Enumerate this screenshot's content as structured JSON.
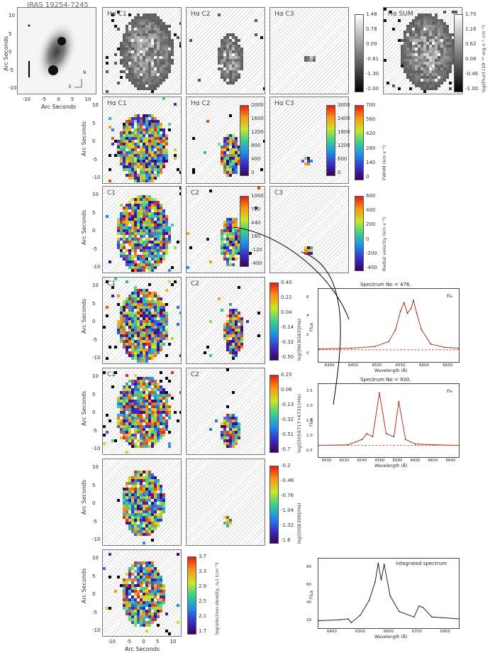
{
  "top_title": "IRAS 19254-7245",
  "axis_label": "Arc Seconds",
  "compass": {
    "n": "N",
    "e": "E"
  },
  "axis_ticks_y": [
    "10",
    "5",
    "0",
    "-5",
    "-10"
  ],
  "axis_ticks_x": [
    "-10",
    "-5",
    "0",
    "5",
    "10"
  ],
  "rows": [
    {
      "labels": [
        "Hα C1",
        "Hα C2",
        "Hα C3",
        "Hα SUM"
      ]
    },
    {
      "labels": [
        "Hα C1",
        "Hα C2",
        "Hα C3"
      ]
    },
    {
      "labels": [
        "C1",
        "C2",
        "C3"
      ]
    },
    {
      "labels": [
        "C1",
        "C2"
      ]
    },
    {
      "labels": [
        "C1",
        "C2"
      ]
    },
    {
      "labels": [
        "",
        ""
      ]
    },
    {
      "labels": [
        ""
      ]
    }
  ],
  "colorbars": {
    "flux_c": {
      "ticks": [
        "1.48",
        "0.78",
        "0.09",
        "-0.61",
        "-1.30",
        "-2.00"
      ]
    },
    "flux_sum": {
      "ticks": [
        "1.70",
        "1.16",
        "0.62",
        "0.08",
        "-0.46",
        "-1.00"
      ],
      "title": "log(Flux) (10⁻¹⁶ erg s⁻¹ cm⁻²)"
    },
    "fwhm_c2": {
      "ticks": [
        "2000",
        "1600",
        "1200",
        "800",
        "400",
        "0"
      ]
    },
    "fwhm_c3": {
      "ticks": [
        "3000",
        "2400",
        "1800",
        "1200",
        "600",
        "0"
      ]
    },
    "fwhm_c1": {
      "ticks": [
        "700",
        "560",
        "420",
        "280",
        "140",
        "0"
      ],
      "title": "FWHM (km s⁻¹)"
    },
    "vel_c2": {
      "ticks": [
        "1000",
        "720",
        "440",
        "160",
        "-120",
        "-400"
      ]
    },
    "vel_c1": {
      "ticks": [
        "600",
        "400",
        "200",
        "0",
        "-200",
        "-400"
      ],
      "title": "Radial velocity (km s⁻¹)"
    },
    "nii": {
      "ticks": [
        "0.40",
        "0.22",
        "0.04",
        "-0.14",
        "-0.32",
        "-0.50"
      ],
      "title": "log([NII]6583]/Hα)"
    },
    "sii": {
      "ticks": [
        "0.25",
        "0.06",
        "-0.13",
        "-0.32",
        "-0.51",
        "-0.7"
      ],
      "title": "log([SII](6717+6731)/Hα)"
    },
    "oi": {
      "ticks": [
        "-0.2",
        "-0.48",
        "-0.76",
        "-1.04",
        "-1.32",
        "-1.6"
      ],
      "title": "log([OI]6300]/Hα)"
    },
    "ne": {
      "ticks": [
        "3.7",
        "3.3",
        "2.9",
        "2.5",
        "2.1",
        "1.7"
      ],
      "title": "log(electron density, nₑ) (cm⁻³)"
    }
  },
  "spectra": [
    {
      "title": "Spectrum No = 476.",
      "label": "nₑ",
      "xticks": [
        "6400",
        "6450",
        "6500",
        "6550",
        "6600",
        "6650"
      ],
      "yticks": [
        "0",
        "2",
        "4",
        "6"
      ],
      "xlabel": "Wavelength (Å)",
      "ylabel": "Flux"
    },
    {
      "title": "Spectrum No = 930.",
      "label": "nₑ",
      "xticks": [
        "6500",
        "6520",
        "6540",
        "6560",
        "6580",
        "6600",
        "6620",
        "6640"
      ],
      "yticks": [
        "0.5",
        "1.0",
        "1.5",
        "2.0",
        "2.5"
      ],
      "xlabel": "Wavelength (Å)",
      "ylabel": "Flux"
    },
    {
      "title": "integrated spectrum",
      "label": "",
      "xticks": [
        "6400",
        "6500",
        "6600",
        "6700",
        "6800"
      ],
      "yticks": [
        "20",
        "40",
        "60",
        "80"
      ],
      "xlabel": "Wavelength (Å)",
      "ylabel": "Flux"
    }
  ],
  "chart_data": [
    {
      "type": "line",
      "title": "Spectrum No = 476.",
      "xlabel": "Wavelength (Å)",
      "ylabel": "Flux",
      "xlim": [
        6380,
        6680
      ],
      "ylim": [
        -1,
        8
      ],
      "x": [
        6380,
        6450,
        6500,
        6530,
        6545,
        6555,
        6563,
        6570,
        6578,
        6583,
        6590,
        6600,
        6620,
        6650,
        6680
      ],
      "series": [
        {
          "values": [
            0.6,
            0.7,
            0.9,
            1.5,
            3.0,
            5.2,
            6.3,
            5.0,
            5.6,
            6.6,
            5.0,
            3.0,
            1.2,
            0.8,
            0.7
          ]
        }
      ]
    },
    {
      "type": "line",
      "title": "Spectrum No = 930.",
      "xlabel": "Wavelength (Å)",
      "ylabel": "Flux",
      "xlim": [
        6500,
        6645
      ],
      "ylim": [
        0.3,
        2.8
      ],
      "x": [
        6500,
        6530,
        6545,
        6550,
        6556,
        6563,
        6570,
        6578,
        6583,
        6590,
        6600,
        6620,
        6645
      ],
      "series": [
        {
          "values": [
            0.7,
            0.72,
            0.9,
            1.1,
            1.0,
            2.5,
            1.1,
            1.0,
            2.2,
            0.9,
            0.75,
            0.72,
            0.7
          ]
        }
      ]
    },
    {
      "type": "line",
      "title": "integrated spectrum",
      "xlabel": "Wavelength (Å)",
      "ylabel": "Flux",
      "xlim": [
        6380,
        6850
      ],
      "ylim": [
        10,
        85
      ],
      "x": [
        6380,
        6450,
        6480,
        6490,
        6520,
        6550,
        6570,
        6580,
        6590,
        6600,
        6620,
        6650,
        6700,
        6717,
        6731,
        6760,
        6850
      ],
      "series": [
        {
          "values": [
            18,
            19,
            20,
            16,
            24,
            40,
            60,
            80,
            62,
            79,
            45,
            28,
            22,
            34,
            32,
            22,
            20
          ]
        }
      ]
    }
  ]
}
